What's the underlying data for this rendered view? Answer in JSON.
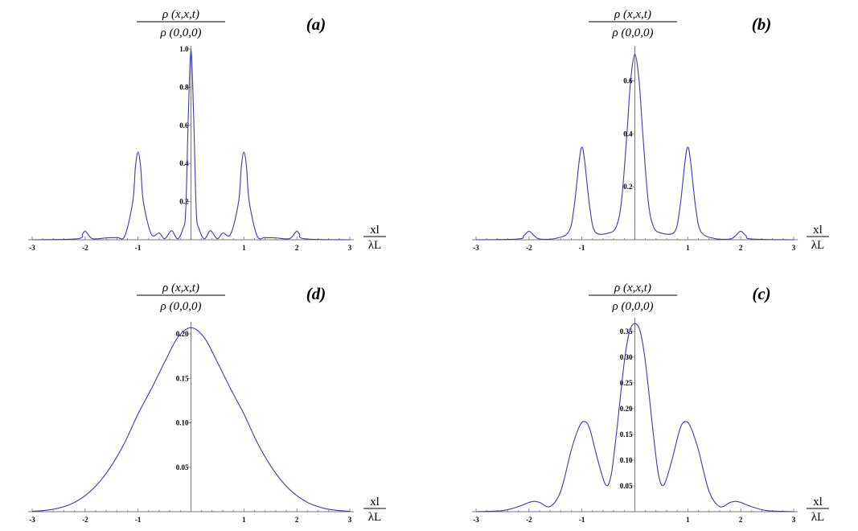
{
  "chart_data": [
    {
      "id": "a",
      "type": "line",
      "panel_label": "(a)",
      "ylabel_num": "ρ (x,x,t)",
      "ylabel_den": "ρ (0,0,0)",
      "xlabel_num": "xl",
      "xlabel_den": "λL",
      "xlim": [
        -3,
        3
      ],
      "ylim": [
        0,
        1.0
      ],
      "x_ticks": [
        "-3",
        "-2",
        "-1",
        "1",
        "2",
        "3"
      ],
      "y_ticks": [
        "0.2",
        "0.4",
        "0.6",
        "0.8",
        "1.0"
      ],
      "line_color": "#3b3bb3",
      "series": [
        {
          "x": [
            -3,
            -2.15,
            -2.05,
            -2,
            -1.95,
            -1.85,
            -1.6,
            -1.4,
            -1.25,
            -1.1,
            -1.05,
            -1,
            -0.95,
            -0.9,
            -0.75,
            -0.6,
            -0.5,
            -0.4,
            -0.35,
            -0.25,
            -0.15,
            -0.1,
            -0.05,
            0,
            0.05,
            0.1,
            0.15,
            0.25,
            0.35,
            0.4,
            0.5,
            0.6,
            0.75,
            0.9,
            0.95,
            1,
            1.05,
            1.1,
            1.25,
            1.4,
            1.6,
            1.85,
            1.95,
            2,
            2.05,
            2.15,
            3
          ],
          "y": [
            0,
            0.005,
            0.03,
            0.045,
            0.03,
            0.005,
            0.01,
            0.012,
            0.02,
            0.2,
            0.38,
            0.46,
            0.38,
            0.2,
            0.03,
            0.035,
            0.005,
            0.04,
            0.045,
            0.005,
            0.06,
            0.15,
            0.65,
            1.0,
            0.65,
            0.15,
            0.06,
            0.005,
            0.045,
            0.04,
            0.005,
            0.035,
            0.03,
            0.2,
            0.38,
            0.46,
            0.38,
            0.2,
            0.02,
            0.012,
            0.01,
            0.005,
            0.03,
            0.045,
            0.03,
            0.005,
            0
          ]
        }
      ]
    },
    {
      "id": "b",
      "type": "line",
      "panel_label": "(b)",
      "ylabel_num": "ρ (x,x,t)",
      "ylabel_den": "ρ (0,0,0)",
      "xlabel_num": "xl",
      "xlabel_den": "λL",
      "xlim": [
        -3,
        3
      ],
      "ylim": [
        0,
        0.72
      ],
      "x_ticks": [
        "-3",
        "-2",
        "-1",
        "1",
        "2",
        "3"
      ],
      "y_ticks": [
        "0.2",
        "0.4",
        "0.6"
      ],
      "line_color": "#3b3bb3",
      "series": [
        {
          "x": [
            -3,
            -2.2,
            -2.1,
            -2,
            -1.9,
            -1.8,
            -1.5,
            -1.25,
            -1.15,
            -1.05,
            -1,
            -0.95,
            -0.85,
            -0.75,
            -0.5,
            -0.35,
            -0.25,
            -0.15,
            -0.08,
            0,
            0.08,
            0.15,
            0.25,
            0.35,
            0.5,
            0.75,
            0.85,
            0.95,
            1,
            1.05,
            1.15,
            1.25,
            1.5,
            1.8,
            1.9,
            2,
            2.1,
            2.2,
            3
          ],
          "y": [
            0,
            0.003,
            0.015,
            0.032,
            0.015,
            0.003,
            0.005,
            0.03,
            0.12,
            0.3,
            0.35,
            0.3,
            0.12,
            0.03,
            0.025,
            0.05,
            0.15,
            0.4,
            0.6,
            0.7,
            0.6,
            0.4,
            0.15,
            0.05,
            0.025,
            0.03,
            0.12,
            0.3,
            0.35,
            0.3,
            0.12,
            0.03,
            0.005,
            0.003,
            0.015,
            0.032,
            0.015,
            0.003,
            0
          ]
        }
      ]
    },
    {
      "id": "d",
      "type": "line",
      "panel_label": "(d)",
      "ylabel_num": "ρ (x,x,t)",
      "ylabel_den": "ρ (0,0,0)",
      "xlabel_num": "xl",
      "xlabel_den": "λL",
      "xlim": [
        -3,
        3
      ],
      "ylim": [
        0,
        0.21
      ],
      "x_ticks": [
        "-3",
        "-2",
        "-1",
        "1",
        "2",
        "3"
      ],
      "y_ticks": [
        "0.05",
        "0.10",
        "0.15",
        "0.20"
      ],
      "line_color": "#3b3bb3",
      "series": [
        {
          "x": [
            -3,
            -2.75,
            -2.5,
            -2.25,
            -2,
            -1.75,
            -1.5,
            -1.25,
            -1,
            -0.75,
            -0.5,
            -0.25,
            0,
            0.25,
            0.5,
            0.75,
            1,
            1.25,
            1.5,
            1.75,
            2,
            2.25,
            2.5,
            2.75,
            3
          ],
          "y": [
            0.0005,
            0.0015,
            0.004,
            0.009,
            0.018,
            0.032,
            0.052,
            0.078,
            0.11,
            0.138,
            0.168,
            0.196,
            0.207,
            0.196,
            0.168,
            0.138,
            0.11,
            0.078,
            0.052,
            0.032,
            0.018,
            0.009,
            0.004,
            0.0015,
            0.0005
          ]
        }
      ]
    },
    {
      "id": "c",
      "type": "line",
      "panel_label": "(c)",
      "ylabel_num": "ρ (x,x,t)",
      "ylabel_den": "ρ (0,0,0)",
      "xlabel_num": "xl",
      "xlabel_den": "λL",
      "xlim": [
        -3,
        3
      ],
      "ylim": [
        0,
        0.37
      ],
      "x_ticks": [
        "-3",
        "-2",
        "-1",
        "1",
        "2",
        "3"
      ],
      "y_ticks": [
        "0.05",
        "0.10",
        "0.15",
        "0.20",
        "0.25",
        "0.30",
        "0.35"
      ],
      "line_color": "#3b3bb3",
      "series": [
        {
          "x": [
            -3,
            -2.5,
            -2.2,
            -2,
            -1.9,
            -1.8,
            -1.6,
            -1.4,
            -1.2,
            -1.05,
            -0.95,
            -0.85,
            -0.7,
            -0.55,
            -0.45,
            -0.35,
            -0.2,
            -0.1,
            0,
            0.1,
            0.2,
            0.35,
            0.45,
            0.55,
            0.7,
            0.85,
            0.95,
            1.05,
            1.2,
            1.4,
            1.6,
            1.8,
            1.9,
            2,
            2.2,
            2.5,
            3
          ],
          "y": [
            0,
            0.002,
            0.01,
            0.018,
            0.02,
            0.018,
            0.01,
            0.04,
            0.12,
            0.165,
            0.175,
            0.16,
            0.1,
            0.052,
            0.07,
            0.15,
            0.29,
            0.35,
            0.365,
            0.35,
            0.29,
            0.15,
            0.07,
            0.052,
            0.1,
            0.16,
            0.175,
            0.165,
            0.12,
            0.04,
            0.01,
            0.018,
            0.02,
            0.018,
            0.01,
            0.002,
            0
          ]
        }
      ]
    }
  ]
}
